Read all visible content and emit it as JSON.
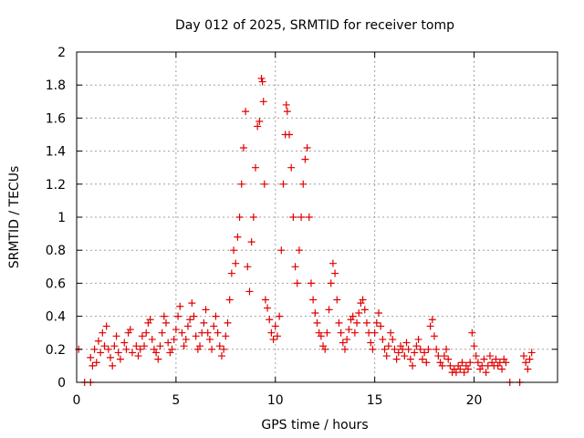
{
  "chart_data": {
    "type": "scatter",
    "title": "Day 012 of 2025, SRMTID for receiver tomp",
    "xlabel": "GPS time / hours",
    "ylabel": "SRMTID / TECUs",
    "xlim": [
      0,
      24.2
    ],
    "ylim": [
      0,
      2
    ],
    "xticks": [
      0,
      5,
      10,
      15,
      20
    ],
    "xtick_labels": [
      "0",
      "5",
      "10",
      "15",
      "20"
    ],
    "yticks": [
      0,
      0.2,
      0.4,
      0.6,
      0.8,
      1,
      1.2,
      1.4,
      1.6,
      1.8,
      2
    ],
    "ytick_labels": [
      "0",
      "0.2",
      "0.4",
      "0.6",
      "0.8",
      "1",
      "1.2",
      "1.4",
      "1.6",
      "1.8",
      "2"
    ],
    "grid": true,
    "marker": "+",
    "color": "#e00000",
    "series_note": "dense scatter of SRMTID values; points below listed as [hour, value] pairs, roughly tracing the visible envelope",
    "points": [
      [
        0.1,
        0.2
      ],
      [
        0.4,
        0.0
      ],
      [
        0.7,
        0.0
      ],
      [
        0.7,
        0.15
      ],
      [
        0.8,
        0.1
      ],
      [
        0.9,
        0.2
      ],
      [
        1.0,
        0.12
      ],
      [
        1.1,
        0.25
      ],
      [
        1.2,
        0.18
      ],
      [
        1.3,
        0.3
      ],
      [
        1.4,
        0.22
      ],
      [
        1.5,
        0.34
      ],
      [
        1.6,
        0.2
      ],
      [
        1.7,
        0.15
      ],
      [
        1.8,
        0.1
      ],
      [
        1.9,
        0.22
      ],
      [
        2.0,
        0.28
      ],
      [
        2.1,
        0.18
      ],
      [
        2.2,
        0.14
      ],
      [
        2.4,
        0.24
      ],
      [
        2.5,
        0.2
      ],
      [
        2.6,
        0.3
      ],
      [
        2.7,
        0.32
      ],
      [
        2.8,
        0.18
      ],
      [
        3.0,
        0.22
      ],
      [
        3.1,
        0.16
      ],
      [
        3.2,
        0.2
      ],
      [
        3.3,
        0.28
      ],
      [
        3.4,
        0.22
      ],
      [
        3.5,
        0.3
      ],
      [
        3.6,
        0.36
      ],
      [
        3.7,
        0.38
      ],
      [
        3.8,
        0.26
      ],
      [
        3.9,
        0.2
      ],
      [
        4.0,
        0.18
      ],
      [
        4.1,
        0.14
      ],
      [
        4.2,
        0.22
      ],
      [
        4.3,
        0.3
      ],
      [
        4.4,
        0.4
      ],
      [
        4.5,
        0.36
      ],
      [
        4.6,
        0.24
      ],
      [
        4.7,
        0.18
      ],
      [
        4.8,
        0.2
      ],
      [
        4.9,
        0.26
      ],
      [
        5.0,
        0.32
      ],
      [
        5.1,
        0.4
      ],
      [
        5.2,
        0.46
      ],
      [
        5.3,
        0.3
      ],
      [
        5.4,
        0.22
      ],
      [
        5.5,
        0.26
      ],
      [
        5.6,
        0.34
      ],
      [
        5.7,
        0.38
      ],
      [
        5.8,
        0.48
      ],
      [
        5.9,
        0.4
      ],
      [
        6.0,
        0.28
      ],
      [
        6.1,
        0.2
      ],
      [
        6.2,
        0.22
      ],
      [
        6.3,
        0.3
      ],
      [
        6.4,
        0.36
      ],
      [
        6.5,
        0.44
      ],
      [
        6.6,
        0.3
      ],
      [
        6.7,
        0.26
      ],
      [
        6.8,
        0.2
      ],
      [
        6.9,
        0.34
      ],
      [
        7.0,
        0.4
      ],
      [
        7.1,
        0.3
      ],
      [
        7.2,
        0.22
      ],
      [
        7.3,
        0.16
      ],
      [
        7.4,
        0.2
      ],
      [
        7.5,
        0.28
      ],
      [
        7.6,
        0.36
      ],
      [
        7.7,
        0.5
      ],
      [
        7.8,
        0.66
      ],
      [
        7.9,
        0.8
      ],
      [
        8.0,
        0.72
      ],
      [
        8.1,
        0.88
      ],
      [
        8.2,
        1.0
      ],
      [
        8.3,
        1.2
      ],
      [
        8.4,
        1.42
      ],
      [
        8.5,
        1.64
      ],
      [
        8.6,
        0.7
      ],
      [
        8.7,
        0.55
      ],
      [
        8.8,
        0.85
      ],
      [
        8.9,
        1.0
      ],
      [
        9.0,
        1.3
      ],
      [
        9.1,
        1.55
      ],
      [
        9.2,
        1.58
      ],
      [
        9.3,
        1.84
      ],
      [
        9.35,
        1.82
      ],
      [
        9.4,
        1.7
      ],
      [
        9.45,
        1.2
      ],
      [
        9.5,
        0.5
      ],
      [
        9.6,
        0.45
      ],
      [
        9.7,
        0.38
      ],
      [
        9.8,
        0.3
      ],
      [
        9.9,
        0.26
      ],
      [
        10.0,
        0.34
      ],
      [
        10.1,
        0.28
      ],
      [
        10.2,
        0.4
      ],
      [
        10.3,
        0.8
      ],
      [
        10.4,
        1.2
      ],
      [
        10.5,
        1.5
      ],
      [
        10.55,
        1.68
      ],
      [
        10.6,
        1.64
      ],
      [
        10.7,
        1.5
      ],
      [
        10.8,
        1.3
      ],
      [
        10.9,
        1.0
      ],
      [
        11.0,
        0.7
      ],
      [
        11.1,
        0.6
      ],
      [
        11.2,
        0.8
      ],
      [
        11.3,
        1.0
      ],
      [
        11.4,
        1.2
      ],
      [
        11.5,
        1.35
      ],
      [
        11.6,
        1.42
      ],
      [
        11.7,
        1.0
      ],
      [
        11.8,
        0.6
      ],
      [
        11.9,
        0.5
      ],
      [
        12.0,
        0.42
      ],
      [
        12.1,
        0.36
      ],
      [
        12.2,
        0.3
      ],
      [
        12.3,
        0.28
      ],
      [
        12.4,
        0.22
      ],
      [
        12.5,
        0.2
      ],
      [
        12.6,
        0.3
      ],
      [
        12.7,
        0.44
      ],
      [
        12.8,
        0.6
      ],
      [
        12.9,
        0.72
      ],
      [
        13.0,
        0.66
      ],
      [
        13.1,
        0.5
      ],
      [
        13.2,
        0.36
      ],
      [
        13.3,
        0.3
      ],
      [
        13.4,
        0.24
      ],
      [
        13.5,
        0.2
      ],
      [
        13.6,
        0.26
      ],
      [
        13.7,
        0.32
      ],
      [
        13.8,
        0.38
      ],
      [
        13.9,
        0.4
      ],
      [
        14.0,
        0.3
      ],
      [
        14.1,
        0.36
      ],
      [
        14.2,
        0.42
      ],
      [
        14.3,
        0.48
      ],
      [
        14.4,
        0.5
      ],
      [
        14.5,
        0.44
      ],
      [
        14.6,
        0.36
      ],
      [
        14.7,
        0.3
      ],
      [
        14.8,
        0.24
      ],
      [
        14.9,
        0.2
      ],
      [
        15.0,
        0.3
      ],
      [
        15.1,
        0.36
      ],
      [
        15.2,
        0.42
      ],
      [
        15.3,
        0.34
      ],
      [
        15.4,
        0.26
      ],
      [
        15.5,
        0.2
      ],
      [
        15.6,
        0.16
      ],
      [
        15.7,
        0.22
      ],
      [
        15.8,
        0.3
      ],
      [
        15.9,
        0.26
      ],
      [
        16.0,
        0.2
      ],
      [
        16.1,
        0.14
      ],
      [
        16.2,
        0.18
      ],
      [
        16.3,
        0.22
      ],
      [
        16.4,
        0.2
      ],
      [
        16.5,
        0.16
      ],
      [
        16.6,
        0.24
      ],
      [
        16.7,
        0.2
      ],
      [
        16.8,
        0.14
      ],
      [
        16.9,
        0.1
      ],
      [
        17.0,
        0.18
      ],
      [
        17.1,
        0.22
      ],
      [
        17.2,
        0.26
      ],
      [
        17.3,
        0.2
      ],
      [
        17.4,
        0.14
      ],
      [
        17.5,
        0.18
      ],
      [
        17.6,
        0.12
      ],
      [
        17.7,
        0.2
      ],
      [
        17.8,
        0.34
      ],
      [
        17.9,
        0.38
      ],
      [
        18.0,
        0.28
      ],
      [
        18.1,
        0.2
      ],
      [
        18.2,
        0.16
      ],
      [
        18.3,
        0.12
      ],
      [
        18.4,
        0.1
      ],
      [
        18.5,
        0.16
      ],
      [
        18.6,
        0.2
      ],
      [
        18.7,
        0.14
      ],
      [
        18.8,
        0.1
      ],
      [
        18.9,
        0.06
      ],
      [
        19.0,
        0.08
      ],
      [
        19.1,
        0.06
      ],
      [
        19.2,
        0.1
      ],
      [
        19.3,
        0.08
      ],
      [
        19.4,
        0.12
      ],
      [
        19.5,
        0.06
      ],
      [
        19.6,
        0.1
      ],
      [
        19.7,
        0.08
      ],
      [
        19.8,
        0.12
      ],
      [
        19.9,
        0.3
      ],
      [
        20.0,
        0.22
      ],
      [
        20.1,
        0.16
      ],
      [
        20.2,
        0.12
      ],
      [
        20.3,
        0.08
      ],
      [
        20.4,
        0.1
      ],
      [
        20.5,
        0.14
      ],
      [
        20.6,
        0.06
      ],
      [
        20.7,
        0.1
      ],
      [
        20.8,
        0.16
      ],
      [
        20.9,
        0.12
      ],
      [
        21.0,
        0.1
      ],
      [
        21.1,
        0.14
      ],
      [
        21.2,
        0.1
      ],
      [
        21.3,
        0.12
      ],
      [
        21.4,
        0.08
      ],
      [
        21.5,
        0.14
      ],
      [
        21.6,
        0.12
      ],
      [
        21.8,
        0.0
      ],
      [
        22.3,
        0.0
      ],
      [
        22.5,
        0.16
      ],
      [
        22.6,
        0.12
      ],
      [
        22.7,
        0.08
      ],
      [
        22.8,
        0.14
      ],
      [
        22.9,
        0.18
      ]
    ]
  }
}
